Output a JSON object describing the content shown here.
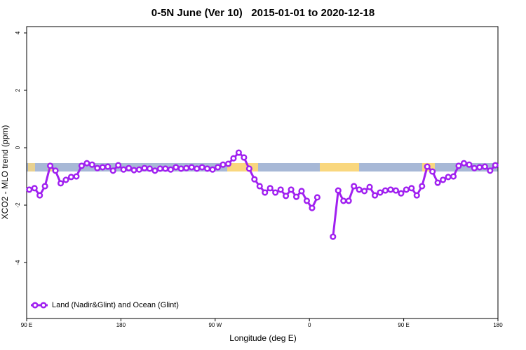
{
  "chart_data": {
    "type": "line",
    "title": "0-5N June (Ver 10)   2015-01-01 to 2020-12-18",
    "x_label": "Longitude (deg E)",
    "y_label": "XCO2 - MLO trend (ppm)",
    "x": [
      92.5,
      97.5,
      102.5,
      107.5,
      112.5,
      117.5,
      122.5,
      127.5,
      132.5,
      137.5,
      142.5,
      147.5,
      152.5,
      157.5,
      162.5,
      167.5,
      172.5,
      177.5,
      182.5,
      187.5,
      192.5,
      197.5,
      202.5,
      207.5,
      212.5,
      217.5,
      222.5,
      227.5,
      232.5,
      237.5,
      242.5,
      247.5,
      252.5,
      257.5,
      262.5,
      267.5,
      272.5,
      277.5,
      282.5,
      287.5,
      292.5,
      297.5,
      302.5,
      307.5,
      312.5,
      317.5,
      322.5,
      327.5,
      332.5,
      337.5,
      342.5,
      347.5,
      352.5,
      357.5,
      362.5,
      367.5,
      372.5,
      377.5,
      382.5,
      387.5,
      392.5,
      397.5,
      402.5,
      407.5,
      412.5,
      417.5,
      422.5,
      427.5,
      432.5,
      437.5,
      442.5,
      447.5,
      452.5,
      457.5,
      462.5,
      467.5,
      472.5,
      477.5,
      482.5,
      487.5,
      492.5,
      497.5,
      502.5,
      507.5,
      512.5,
      517.5,
      522.5,
      527.5,
      532.5,
      537.5
    ],
    "series": [
      {
        "name": "Land (Nadir&Glint) and Ocean (Glint)",
        "color": "#a020f0",
        "values": [
          -1.46,
          -1.41,
          -1.66,
          -1.34,
          -0.63,
          -0.8,
          -1.24,
          -1.12,
          -1.02,
          -1.0,
          -0.63,
          -0.54,
          -0.59,
          -0.71,
          -0.68,
          -0.66,
          -0.8,
          -0.61,
          -0.76,
          -0.71,
          -0.78,
          -0.76,
          -0.71,
          -0.73,
          -0.8,
          -0.73,
          -0.73,
          -0.76,
          -0.68,
          -0.73,
          -0.71,
          -0.68,
          -0.73,
          -0.68,
          -0.73,
          -0.76,
          -0.68,
          -0.59,
          -0.56,
          -0.37,
          -0.17,
          -0.34,
          -0.73,
          -1.1,
          -1.34,
          -1.56,
          -1.41,
          -1.56,
          -1.46,
          -1.68,
          -1.46,
          -1.71,
          -1.51,
          -1.85,
          -2.1,
          -1.73,
          null,
          null,
          -3.1,
          -1.49,
          -1.85,
          -1.85,
          -1.34,
          -1.46,
          -1.51,
          -1.37,
          -1.66,
          -1.56,
          -1.49,
          -1.46,
          -1.49,
          -1.59,
          -1.46,
          -1.41,
          -1.66,
          -1.34,
          -0.66,
          -0.83,
          -1.22,
          -1.12,
          -1.02,
          -1.0,
          -0.63,
          -0.54,
          -0.59,
          -0.71,
          -0.68,
          -0.66,
          -0.8,
          -0.61
        ]
      }
    ],
    "xlim": [
      90,
      540
    ],
    "xticks": [
      {
        "value": 90,
        "label": "90 E"
      },
      180,
      {
        "value": 270,
        "label": "90 W"
      },
      {
        "value": 360,
        "label": "0"
      },
      {
        "value": 450,
        "label": "90 E"
      },
      {
        "value": 540,
        "label": "180"
      }
    ],
    "ylim": [
      -5.95,
      4.22
    ],
    "yticks": [
      -4,
      -2,
      0,
      2,
      4
    ],
    "legend": "bottom-left"
  }
}
